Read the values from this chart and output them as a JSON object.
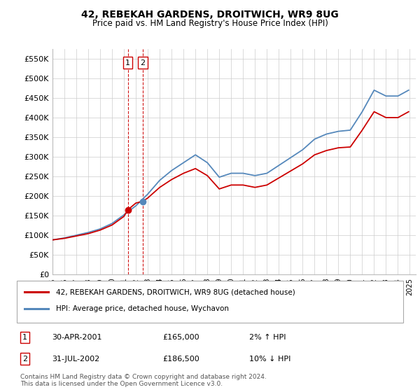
{
  "title": "42, REBEKAH GARDENS, DROITWICH, WR9 8UG",
  "subtitle": "Price paid vs. HM Land Registry's House Price Index (HPI)",
  "ylim": [
    0,
    575000
  ],
  "yticks": [
    0,
    50000,
    100000,
    150000,
    200000,
    250000,
    300000,
    350000,
    400000,
    450000,
    500000,
    550000
  ],
  "ytick_labels": [
    "£0",
    "£50K",
    "£100K",
    "£150K",
    "£200K",
    "£250K",
    "£300K",
    "£350K",
    "£400K",
    "£450K",
    "£500K",
    "£550K"
  ],
  "xlim_start": 1995.0,
  "xlim_end": 2025.5,
  "transaction1": {
    "date": "30-APR-2001",
    "price": 165000,
    "pct": "2%",
    "dir": "↑",
    "year": 2001.33
  },
  "transaction2": {
    "date": "31-JUL-2002",
    "price": 186500,
    "pct": "10%",
    "dir": "↓",
    "year": 2002.58
  },
  "red_color": "#cc0000",
  "blue_color": "#5588bb",
  "legend_label_red": "42, REBEKAH GARDENS, DROITWICH, WR9 8UG (detached house)",
  "legend_label_blue": "HPI: Average price, detached house, Wychavon",
  "footer": "Contains HM Land Registry data © Crown copyright and database right 2024.\nThis data is licensed under the Open Government Licence v3.0.",
  "hpi_years": [
    1995,
    1996,
    1997,
    1998,
    1999,
    2000,
    2001,
    2002,
    2003,
    2004,
    2005,
    2006,
    2007,
    2008,
    2009,
    2010,
    2011,
    2012,
    2013,
    2014,
    2015,
    2016,
    2017,
    2018,
    2019,
    2020,
    2021,
    2022,
    2023,
    2024,
    2024.9
  ],
  "hpi_values": [
    88000,
    93000,
    100000,
    107000,
    116000,
    130000,
    152000,
    175000,
    205000,
    240000,
    265000,
    285000,
    305000,
    285000,
    248000,
    258000,
    258000,
    252000,
    258000,
    278000,
    298000,
    318000,
    345000,
    358000,
    365000,
    368000,
    415000,
    470000,
    455000,
    455000,
    470000
  ],
  "red_years": [
    1995,
    1996,
    1997,
    1998,
    1999,
    2000,
    2001,
    2001.33,
    2002,
    2002.58,
    2003,
    2004,
    2005,
    2006,
    2007,
    2008,
    2009,
    2010,
    2011,
    2012,
    2013,
    2014,
    2015,
    2016,
    2017,
    2018,
    2019,
    2020,
    2021,
    2022,
    2023,
    2024,
    2024.9
  ],
  "red_values": [
    88000,
    92000,
    98000,
    104000,
    113000,
    126000,
    148000,
    165000,
    182000,
    186500,
    195000,
    222000,
    242000,
    258000,
    270000,
    252000,
    218000,
    228000,
    228000,
    222000,
    228000,
    246000,
    264000,
    282000,
    305000,
    316000,
    323000,
    325000,
    368000,
    415000,
    400000,
    400000,
    415000
  ]
}
